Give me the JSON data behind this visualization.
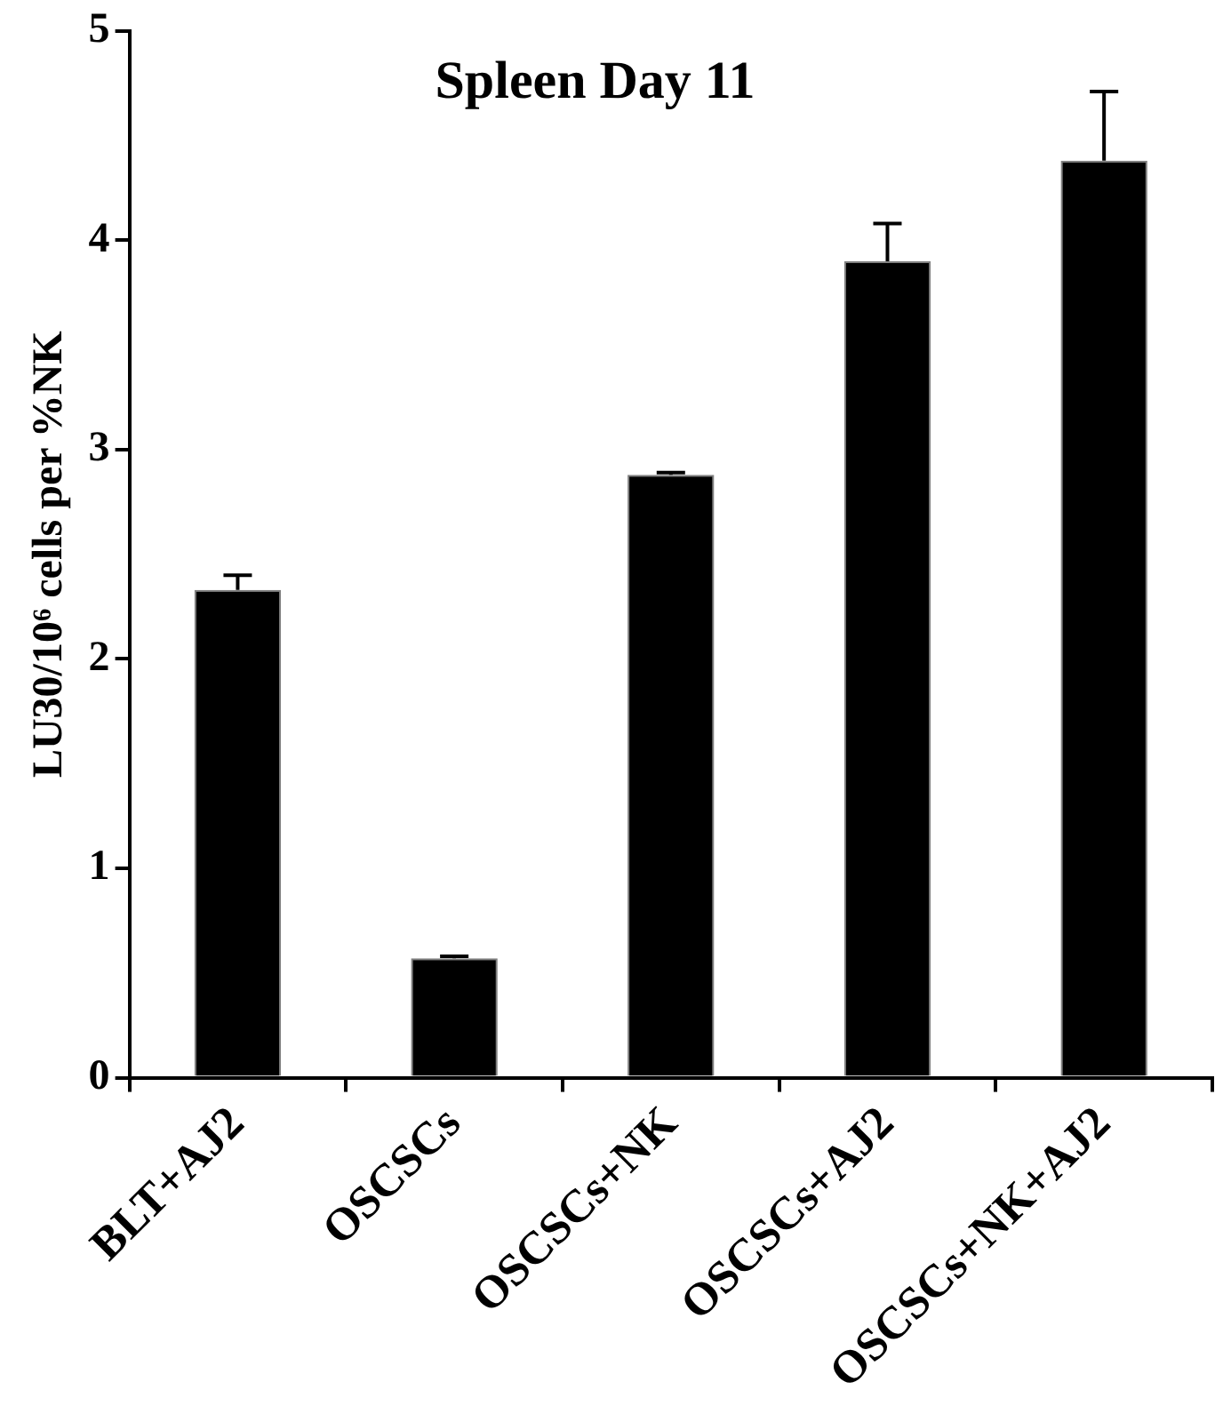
{
  "chart_data": {
    "type": "bar",
    "title": "Spleen Day 11",
    "ylabel": "LU30/10⁶ cells per %NK",
    "categories": [
      "BLT+AJ2",
      "OSCSCs",
      "OSCSCs+NK",
      "OSCSCs+AJ2",
      "OSCSCs+NK+AJ2"
    ],
    "values": [
      2.33,
      0.57,
      2.88,
      3.9,
      4.38
    ],
    "errors": [
      0.07,
      0.01,
      0.01,
      0.18,
      0.33
    ],
    "color": "#000000",
    "ylim": [
      0,
      5
    ],
    "yticks": [
      0,
      1,
      2,
      3,
      4,
      5
    ],
    "grid": false,
    "legend": false
  }
}
